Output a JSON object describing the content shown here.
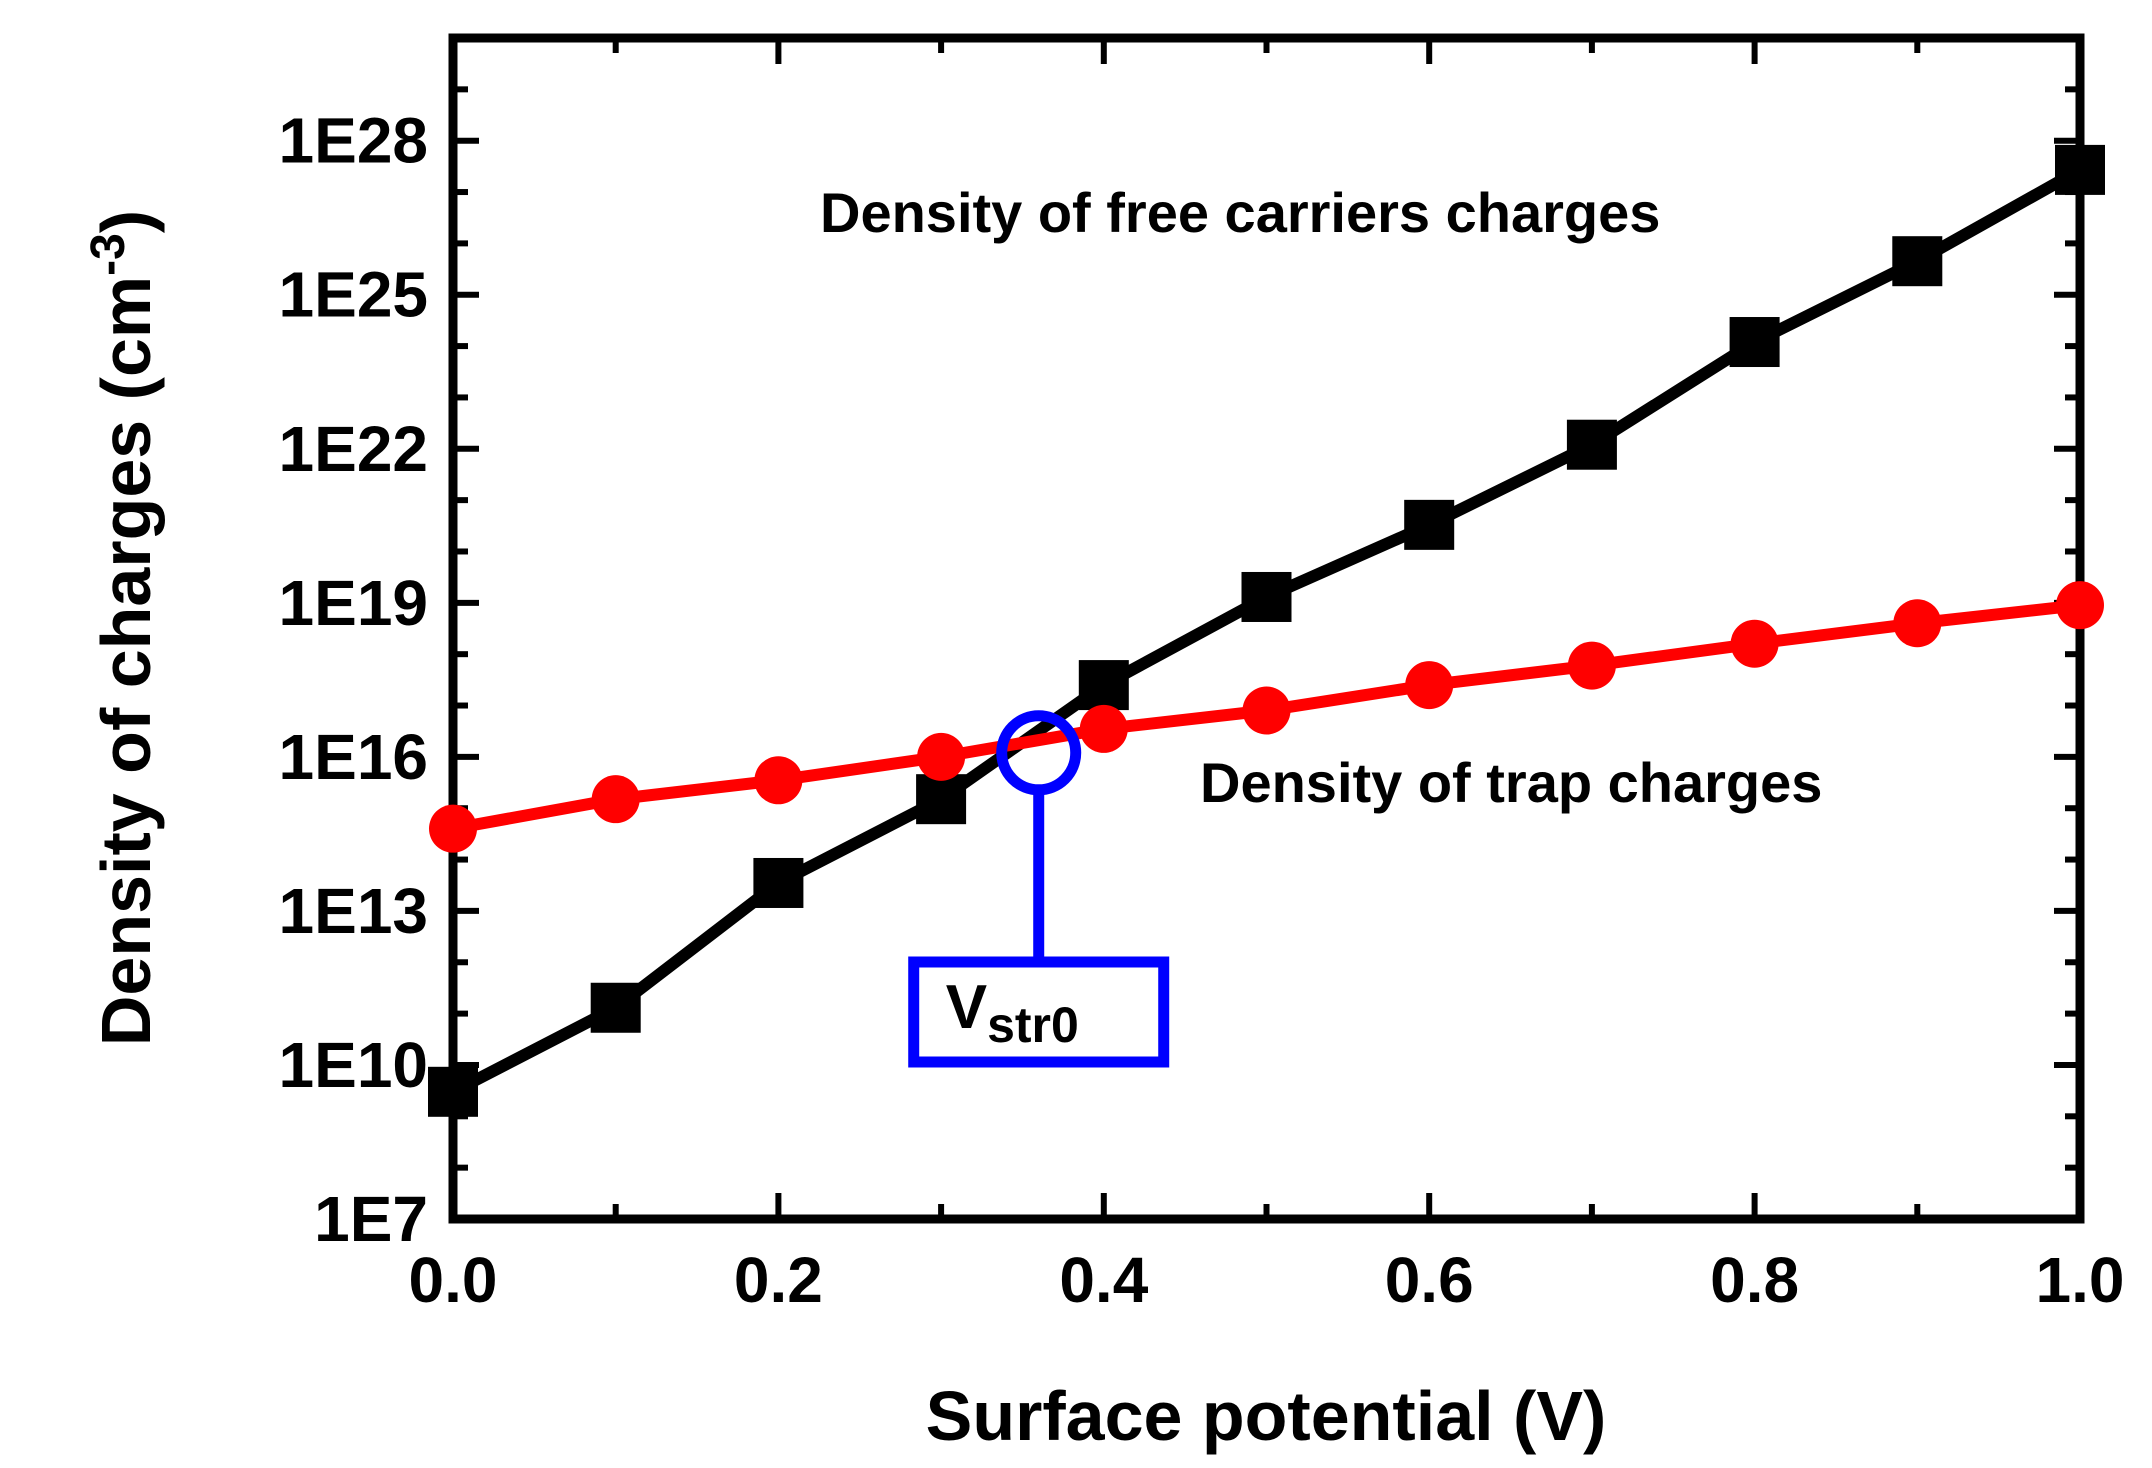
{
  "chart_data": {
    "type": "line",
    "xlabel": "Surface potential (V)",
    "ylabel": "Density of charges (cm",
    "ylabel_sup": "-3",
    "ylabel_end": ")",
    "xlim": [
      0.0,
      1.0
    ],
    "ylim_exp": [
      7,
      30
    ],
    "yscale": "log",
    "grid": false,
    "x_ticks": [
      "0.0",
      "0.2",
      "0.4",
      "0.6",
      "0.8",
      "1.0"
    ],
    "x_tick_values": [
      0.0,
      0.2,
      0.4,
      0.6,
      0.8,
      1.0
    ],
    "y_ticks": [
      "1E7",
      "1E10",
      "1E13",
      "1E16",
      "1E19",
      "1E22",
      "1E25",
      "1E28"
    ],
    "y_tick_exps": [
      7,
      10,
      13,
      16,
      19,
      22,
      25,
      28
    ],
    "x": [
      0.0,
      0.1,
      0.2,
      0.3,
      0.4,
      0.5,
      0.6,
      0.7,
      0.8,
      0.9,
      1.0
    ],
    "series": [
      {
        "label": "Density of free carriers charges",
        "color": "#000000",
        "marker": "square",
        "values": [
          3000000000.0,
          130000000000.0,
          35000000000000.0,
          1500000000000000.0,
          2.5e+17,
          1.3e+19,
          3.3e+20,
          1.2e+22,
          1.2e+24,
          4.5e+25,
          2.7e+27
        ]
      },
      {
        "label": "Density of trap charges",
        "color": "#ff0000",
        "marker": "circle",
        "values": [
          400000000000000.0,
          1500000000000000.0,
          3500000000000000.0,
          1e+16,
          3.5e+16,
          8e+16,
          2.5e+17,
          6e+17,
          1.6e+18,
          4e+18,
          9e+18
        ]
      }
    ],
    "annotations": [
      {
        "label_main": "V",
        "label_sub": "str0",
        "x": 0.36,
        "y": 1.2e+16,
        "color": "#0000ff"
      }
    ]
  }
}
